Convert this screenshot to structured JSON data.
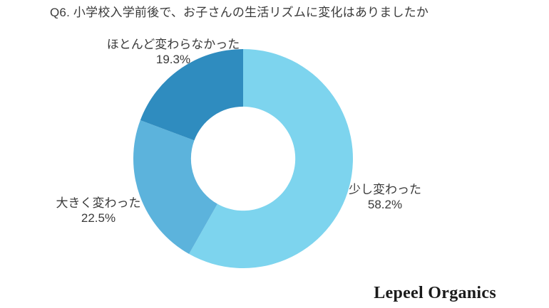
{
  "page": {
    "background": "#ffffff"
  },
  "chart_data": {
    "type": "pie",
    "subtype": "donut",
    "title": "Q6. 小学校入学前後で、お子さんの生活リズムに変化はありましたか",
    "start_angle": "top",
    "direction": "clockwise",
    "inner_radius_ratio": 0.475,
    "legend": "none",
    "labels_position": "outside",
    "segments": [
      {
        "label": "少し変わった",
        "value": 58.2,
        "pct_label": "58.2%",
        "color": "#7DD4EE"
      },
      {
        "label": "大きく変わった",
        "value": 22.5,
        "pct_label": "22.5%",
        "color": "#5CB3DC"
      },
      {
        "label": "ほとんど変わらなかった",
        "value": 19.3,
        "pct_label": "19.3%",
        "color": "#2F8CBF"
      }
    ]
  },
  "footer": {
    "brand": "Lepeel Organics"
  },
  "colors": {
    "text": "#3a3a3a",
    "brand_text": "#1a1a1a"
  }
}
